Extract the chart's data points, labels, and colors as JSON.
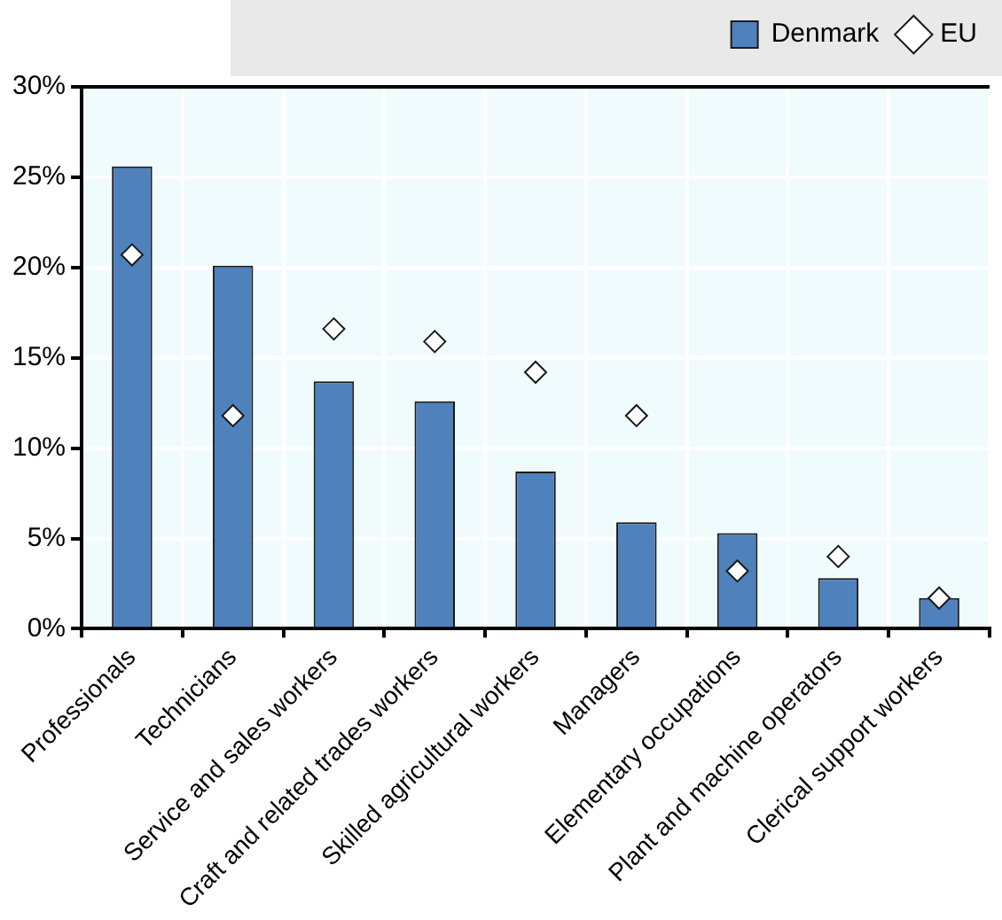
{
  "chart_data": {
    "type": "bar",
    "categories": [
      "Professionals",
      "Technicians",
      "Service and sales workers",
      "Craft and related trades workers",
      "Skilled agricultural workers",
      "Managers",
      "Elementary occupations",
      "Plant and machine operators",
      "Clerical support workers"
    ],
    "series": [
      {
        "name": "Denmark",
        "color": "#4f81bd",
        "values": [
          25.6,
          20.1,
          13.7,
          12.6,
          8.7,
          5.9,
          5.3,
          2.8,
          1.7
        ]
      },
      {
        "name": "EU",
        "type": "scatter",
        "color": "#ffffff",
        "marker": "diamond",
        "x": [
          "Professionals",
          "Technicians",
          "Service and sales workers",
          "Craft and related trades workers",
          "Skilled agricultural workers",
          "Managers",
          "Elementary occupations",
          "Plant and machine operators",
          "Clerical support workers"
        ],
        "values": [
          20.7,
          11.8,
          16.6,
          15.9,
          14.2,
          11.8,
          3.2,
          4.0,
          1.7
        ]
      }
    ],
    "ylim": [
      0,
      30
    ],
    "yticks": [
      {
        "value": 0,
        "label": "0%"
      },
      {
        "value": 5,
        "label": "5%"
      },
      {
        "value": 10,
        "label": "10%"
      },
      {
        "value": 15,
        "label": "15%"
      },
      {
        "value": 20,
        "label": "20%"
      },
      {
        "value": 25,
        "label": "25%"
      },
      {
        "value": 30,
        "label": "30%"
      }
    ],
    "grid": true,
    "legend": "top"
  }
}
